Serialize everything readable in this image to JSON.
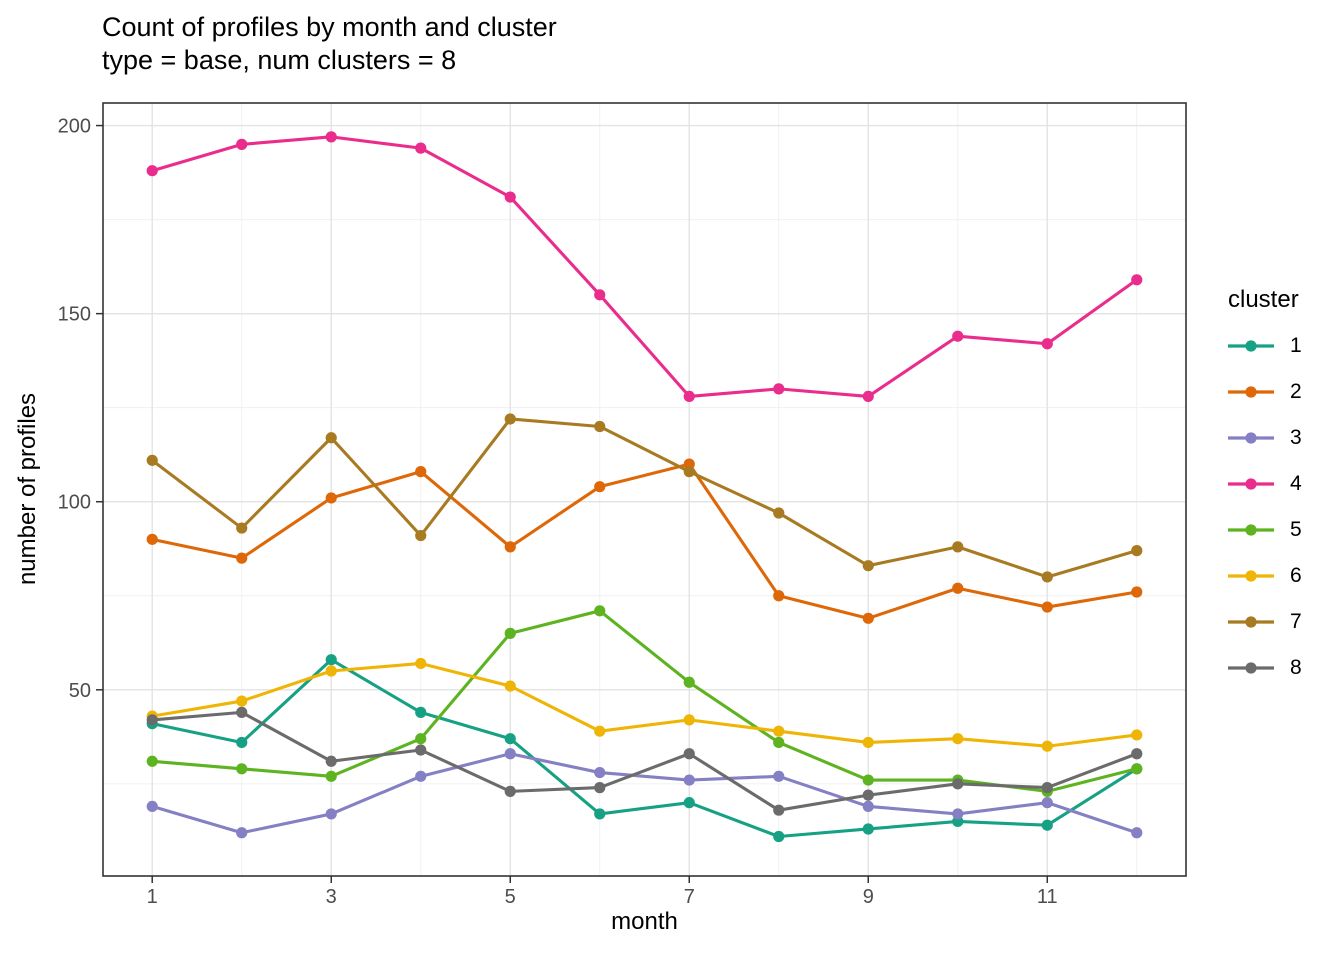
{
  "title": {
    "line1": "Count of profiles by month and cluster",
    "line2": "type = base, num clusters = 8"
  },
  "axes": {
    "x_label": "month",
    "y_label": "number of profiles"
  },
  "legend": {
    "title": "cluster",
    "entries": [
      "1",
      "2",
      "3",
      "4",
      "5",
      "6",
      "7",
      "8"
    ]
  },
  "chart_data": {
    "type": "line",
    "title": "Count of profiles by month and cluster",
    "subtitle": "type = base, num clusters = 8",
    "xlabel": "month",
    "ylabel": "number of profiles",
    "legend_title": "cluster",
    "legend_position": "right",
    "grid": "major+minor",
    "x": [
      1,
      2,
      3,
      4,
      5,
      6,
      7,
      8,
      9,
      10,
      11,
      12
    ],
    "xlim": [
      0.45,
      12.55
    ],
    "ylim": [
      0.5,
      206
    ],
    "x_major_ticks": [
      1,
      3,
      5,
      7,
      9,
      11
    ],
    "x_minor_gridlines": [
      2,
      4,
      6,
      8,
      10,
      12
    ],
    "y_major_ticks": [
      50,
      100,
      150,
      200
    ],
    "y_minor_gridlines": [
      25,
      75,
      125,
      175
    ],
    "series": [
      {
        "name": "1",
        "color": "#17A184",
        "values": [
          41,
          36,
          58,
          44,
          37,
          17,
          20,
          11,
          13,
          15,
          14,
          29
        ]
      },
      {
        "name": "2",
        "color": "#DE6707",
        "values": [
          90,
          85,
          101,
          108,
          88,
          104,
          110,
          75,
          69,
          77,
          72,
          76
        ]
      },
      {
        "name": "3",
        "color": "#8580C4",
        "values": [
          19,
          12,
          17,
          27,
          33,
          28,
          26,
          27,
          19,
          17,
          20,
          12
        ]
      },
      {
        "name": "4",
        "color": "#EA2C8C",
        "values": [
          188,
          195,
          197,
          194,
          181,
          155,
          128,
          130,
          128,
          144,
          142,
          159
        ]
      },
      {
        "name": "5",
        "color": "#5EB320",
        "values": [
          31,
          29,
          27,
          37,
          65,
          71,
          52,
          36,
          26,
          26,
          23,
          29
        ]
      },
      {
        "name": "6",
        "color": "#EFB506",
        "values": [
          43,
          47,
          55,
          57,
          51,
          39,
          42,
          39,
          36,
          37,
          35,
          38
        ]
      },
      {
        "name": "7",
        "color": "#A87A22",
        "values": [
          111,
          93,
          117,
          91,
          122,
          120,
          108,
          97,
          83,
          88,
          80,
          87
        ]
      },
      {
        "name": "8",
        "color": "#6B6B6B",
        "values": [
          42,
          44,
          31,
          34,
          23,
          24,
          33,
          18,
          22,
          25,
          24,
          33
        ]
      }
    ],
    "style": {
      "panel_border_color": "#333333",
      "major_grid_color": "#e3e3e3",
      "minor_grid_color": "#f0f0f0",
      "tick_color": "#333333",
      "tick_label_color": "#4d4d4d"
    }
  }
}
